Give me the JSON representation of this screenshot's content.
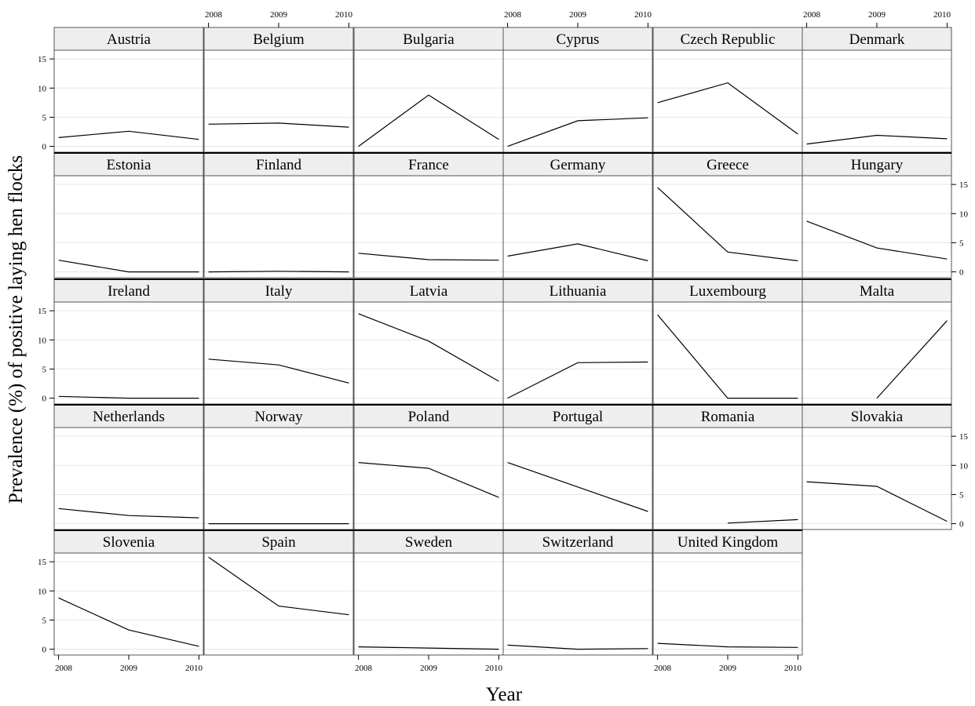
{
  "chart_data": {
    "type": "line",
    "layout": "trellis",
    "xlabel": "Year",
    "ylabel": "Prevalence (%) of positive laying hen flocks",
    "x": [
      2008,
      2009,
      2010
    ],
    "x_tick_labels": [
      "2008",
      "2009",
      "2010"
    ],
    "y_ticks": [
      0,
      5,
      10,
      15
    ],
    "y_tick_labels": [
      "0",
      "5",
      "10",
      "15"
    ],
    "ylim": [
      -1,
      16.5
    ],
    "grid": true,
    "panels": [
      {
        "name": "Austria",
        "values": [
          1.5,
          2.6,
          1.2
        ]
      },
      {
        "name": "Belgium",
        "values": [
          3.8,
          4.0,
          3.3
        ]
      },
      {
        "name": "Bulgaria",
        "values": [
          0.0,
          8.8,
          1.2
        ]
      },
      {
        "name": "Cyprus",
        "values": [
          0.0,
          4.4,
          4.9
        ]
      },
      {
        "name": "Czech Republic",
        "values": [
          7.5,
          10.9,
          2.1
        ]
      },
      {
        "name": "Denmark",
        "values": [
          0.4,
          1.9,
          1.3
        ]
      },
      {
        "name": "Estonia",
        "values": [
          2.0,
          0.0,
          0.0
        ]
      },
      {
        "name": "Finland",
        "values": [
          0.0,
          0.1,
          0.0
        ]
      },
      {
        "name": "France",
        "values": [
          3.2,
          2.1,
          2.0
        ]
      },
      {
        "name": "Germany",
        "values": [
          2.7,
          4.8,
          1.9
        ]
      },
      {
        "name": "Greece",
        "values": [
          14.5,
          3.4,
          1.9
        ]
      },
      {
        "name": "Hungary",
        "values": [
          8.7,
          4.1,
          2.2
        ]
      },
      {
        "name": "Ireland",
        "values": [
          0.3,
          0.0,
          0.0
        ]
      },
      {
        "name": "Italy",
        "values": [
          6.7,
          5.7,
          2.6
        ]
      },
      {
        "name": "Latvia",
        "values": [
          14.5,
          9.8,
          2.9
        ]
      },
      {
        "name": "Lithuania",
        "values": [
          0.0,
          6.1,
          6.2
        ]
      },
      {
        "name": "Luxembourg",
        "values": [
          14.3,
          0.0,
          0.0
        ]
      },
      {
        "name": "Malta",
        "values": [
          null,
          0.0,
          13.3
        ]
      },
      {
        "name": "Netherlands",
        "values": [
          2.6,
          1.4,
          1.0
        ]
      },
      {
        "name": "Norway",
        "values": [
          0.0,
          0.0,
          0.0
        ]
      },
      {
        "name": "Poland",
        "values": [
          10.5,
          9.5,
          4.5
        ]
      },
      {
        "name": "Portugal",
        "values": [
          10.5,
          6.3,
          2.1
        ]
      },
      {
        "name": "Romania",
        "values": [
          null,
          0.1,
          0.7
        ]
      },
      {
        "name": "Slovakia",
        "values": [
          7.2,
          6.4,
          0.4
        ]
      },
      {
        "name": "Slovenia",
        "values": [
          8.8,
          3.3,
          0.5
        ]
      },
      {
        "name": "Spain",
        "values": [
          15.8,
          7.4,
          5.9
        ]
      },
      {
        "name": "Sweden",
        "values": [
          0.4,
          0.2,
          0.0
        ]
      },
      {
        "name": "Switzerland",
        "values": [
          0.7,
          0.0,
          0.1
        ]
      },
      {
        "name": "United Kingdom",
        "values": [
          1.0,
          0.4,
          0.3
        ]
      }
    ],
    "colors": {
      "strip_background": "#eeeeee",
      "line": "#000000",
      "grid": "#e6e6e6",
      "frame": "#555555"
    }
  }
}
